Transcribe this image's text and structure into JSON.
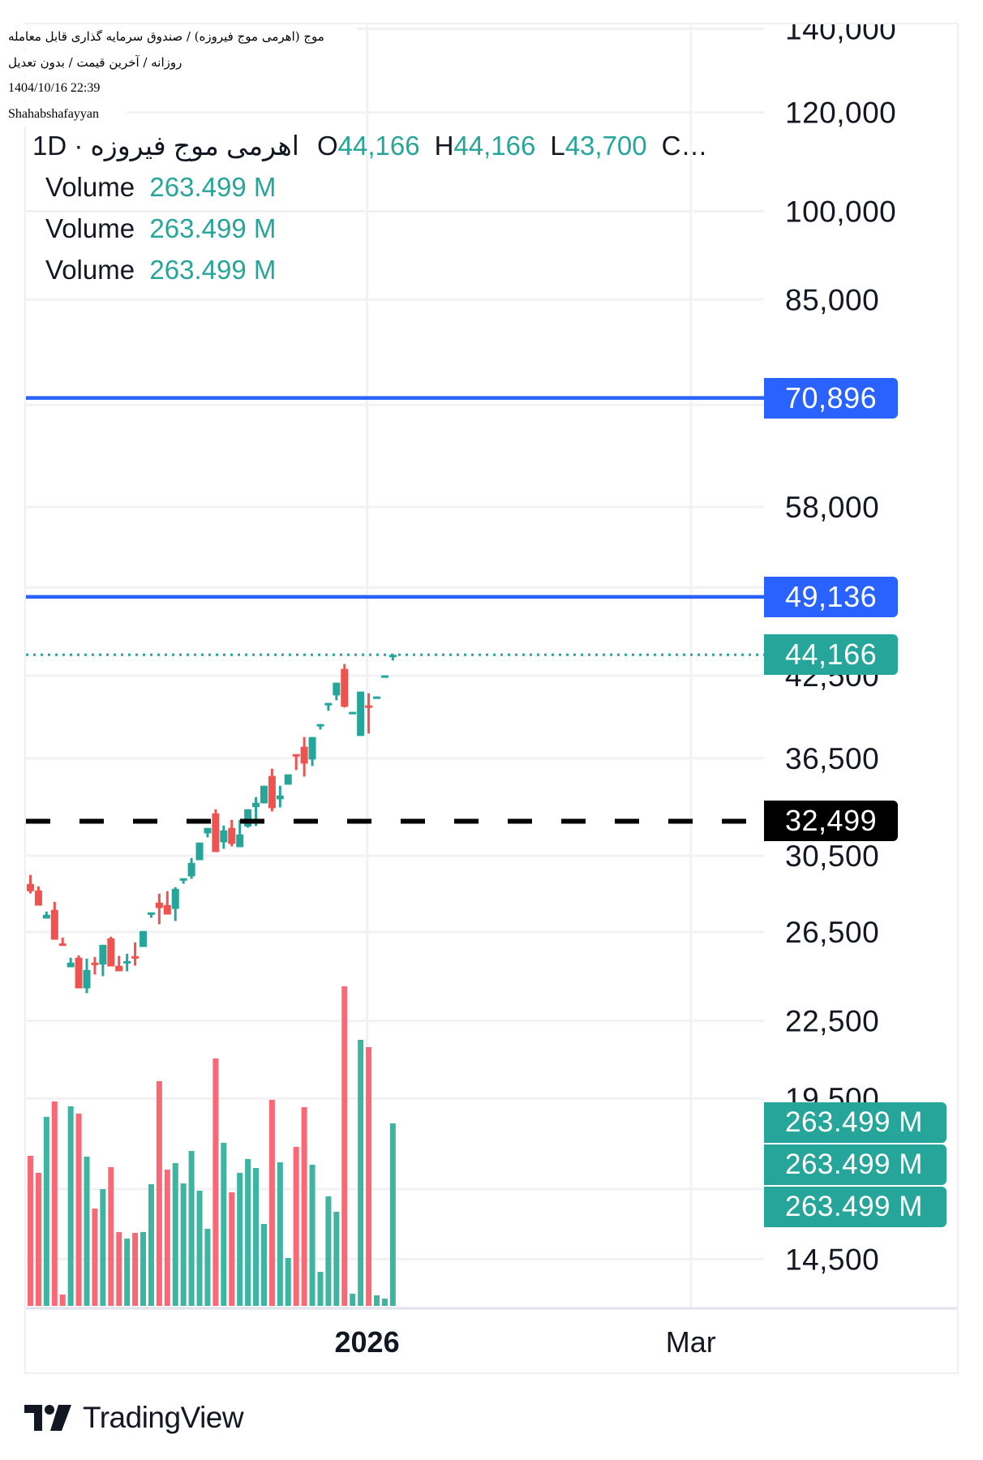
{
  "overlay": {
    "line1": "موج (اهرمی موج فیروزه) / صندوق سرمایه گذاری قابل معامله",
    "line2": "روزانه / آخرین قیمت / بدون تعدیل",
    "datetime": "1404/10/16 22:39",
    "author": "Shahabshafayyan"
  },
  "legend": {
    "symbol": "اهرمی موج فیروزه · 1D",
    "open_label": "O",
    "open": "44,166",
    "high_label": "H",
    "high": "44,166",
    "low_label": "L",
    "low": "43,700",
    "close_label": "C…",
    "volume_rows": [
      {
        "label": "Volume",
        "value": "263.499 M"
      },
      {
        "label": "Volume",
        "value": "263.499 M"
      },
      {
        "label": "Volume",
        "value": "263.499 M"
      }
    ]
  },
  "chart_data": {
    "type": "candlestick",
    "y_scale": "log",
    "grid": true,
    "colors": {
      "up": "#26a69a",
      "down": "#ef5350",
      "volume_up": "#3db5a1",
      "volume_down": "#f96975",
      "level_line": "#2962ff",
      "dashed_line": "#000000",
      "grid": "#f2f2f4"
    },
    "y_ticks": [
      "140,000",
      "120,000",
      "100,000",
      "85,000",
      "58,000",
      "50,000",
      "42,500",
      "36,500",
      "30,500",
      "26,500",
      "22,500",
      "19,500",
      "14,500"
    ],
    "y_tick_values": [
      140000,
      120000,
      100000,
      85000,
      58000,
      50000,
      42500,
      36500,
      30500,
      26500,
      22500,
      19500,
      14500
    ],
    "extra_gridlines": [
      70000,
      16500
    ],
    "x_ticks": [
      {
        "label": "2026",
        "bold": true,
        "index": 41.8
      },
      {
        "label": "Mar",
        "bold": false,
        "index": 82
      }
    ],
    "candles_ohlc": [
      [
        28952,
        29432,
        28451,
        28565
      ],
      [
        28608,
        28822,
        27820,
        27820
      ],
      [
        27162,
        27516,
        27162,
        27352
      ],
      [
        27599,
        28015,
        26126,
        26126
      ],
      [
        25945,
        26231,
        25854,
        25854
      ],
      [
        24832,
        25269,
        24832,
        25043
      ],
      [
        25269,
        25382,
        23885,
        23885
      ],
      [
        23885,
        25231,
        23672,
        24708
      ],
      [
        25043,
        25307,
        24500,
        24956
      ],
      [
        24956,
        25880,
        24426,
        25880
      ],
      [
        26191,
        26270,
        24869,
        24869
      ],
      [
        24894,
        25357,
        24647,
        24647
      ],
      [
        25030,
        25458,
        24647,
        25118
      ],
      [
        25344,
        25996,
        24906,
        25256
      ],
      [
        25778,
        26546,
        25778,
        26546
      ],
      [
        27379,
        27475,
        27203,
        27475
      ],
      [
        27973,
        28437,
        26879,
        27695
      ],
      [
        27848,
        28565,
        27366,
        27366
      ],
      [
        27654,
        28779,
        27041,
        28693
      ],
      [
        29155,
        29257,
        28966,
        29257
      ],
      [
        29359,
        30371,
        29227,
        30100
      ],
      [
        30250,
        31246,
        30250,
        31246
      ],
      [
        31781,
        32099,
        31544,
        32099
      ],
      [
        32975,
        33223,
        30706,
        30706
      ],
      [
        31262,
        32244,
        30890,
        31956
      ],
      [
        32099,
        32583,
        31029,
        31169
      ],
      [
        30983,
        32583,
        30983,
        31718
      ],
      [
        32180,
        33223,
        32115,
        33223
      ],
      [
        33356,
        33976,
        32212,
        33623
      ],
      [
        33589,
        34695,
        33589,
        34695
      ],
      [
        35323,
        35802,
        33091,
        33289
      ],
      [
        33841,
        34695,
        33339,
        34078
      ],
      [
        34765,
        35430,
        34765,
        35430
      ],
      [
        36779,
        36779,
        35713,
        36651
      ],
      [
        37278,
        37953,
        35289,
        36143
      ],
      [
        36414,
        37953,
        35981,
        37953
      ],
      [
        38737,
        38872,
        38486,
        38872
      ],
      [
        40272,
        40413,
        39833,
        40413
      ],
      [
        40981,
        41953,
        40616,
        41953
      ],
      [
        43033,
        43421,
        40072,
        40132
      ],
      [
        39596,
        39754,
        39596,
        39754
      ],
      [
        38029,
        41268,
        38029,
        41268
      ],
      [
        40232,
        41145,
        38199,
        40092
      ],
      [
        40737,
        40899,
        40737,
        40899
      ],
      [
        42352,
        42521,
        42352,
        42521
      ],
      [
        44166,
        44166,
        43700,
        44166
      ]
    ],
    "volume_millions": [
      216.7,
      192.1,
      272.9,
      295.1,
      16.4,
      288.1,
      277.6,
      215.5,
      140.5,
      168.6,
      200.3,
      106.6,
      97.2,
      105.4,
      106.6,
      175.7,
      324.4,
      196.7,
      206.1,
      176.8,
      223.7,
      166.3,
      111.3,
      357.2,
      235.4,
      164.0,
      192.1,
      212.0,
      199.1,
      118.3,
      297.5,
      207.3,
      69.1,
      229.5,
      286.9,
      203.8,
      49.2,
      158.1,
      135.8,
      461.4,
      17.6,
      384.1,
      373.6,
      15.2,
      10.5,
      263.499
    ],
    "horizontal_lines": [
      {
        "price": 70896,
        "label": "70,896",
        "style": "solid",
        "color": "#2962ff"
      },
      {
        "price": 49136,
        "label": "49,136",
        "style": "solid",
        "color": "#2962ff"
      },
      {
        "price": 32499,
        "label": "32,499",
        "style": "dashed",
        "color": "#000000"
      }
    ],
    "last_price": {
      "price": 44166,
      "label": "44,166",
      "color": "#26a69a"
    },
    "volume_tags": [
      "263.499 M",
      "263.499 M",
      "263.499 M"
    ]
  },
  "branding": {
    "name": "TradingView"
  }
}
